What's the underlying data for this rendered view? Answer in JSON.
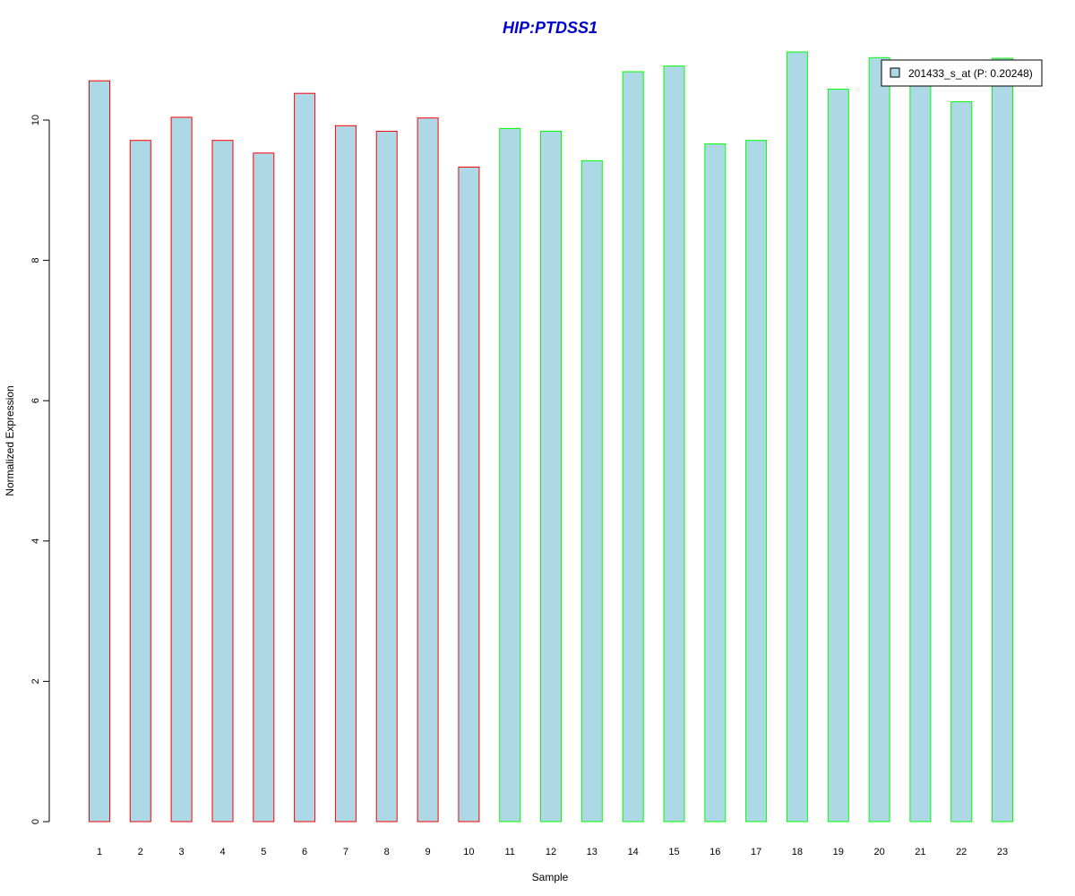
{
  "chart_data": {
    "type": "bar",
    "title": "HIP:PTDSS1",
    "xlabel": "Sample",
    "ylabel": "Normalized Expression",
    "categories": [
      "1",
      "2",
      "3",
      "4",
      "5",
      "6",
      "7",
      "8",
      "9",
      "10",
      "11",
      "12",
      "13",
      "14",
      "15",
      "16",
      "17",
      "18",
      "19",
      "20",
      "21",
      "22",
      "23"
    ],
    "series": [
      {
        "name": "201433_s_at (P: 0.20248)",
        "values": [
          10.56,
          9.71,
          10.04,
          9.71,
          9.53,
          10.38,
          9.92,
          9.84,
          10.03,
          9.33,
          9.88,
          9.84,
          9.42,
          10.69,
          10.77,
          9.66,
          9.71,
          10.97,
          10.44,
          10.89,
          10.62,
          10.26,
          10.88
        ],
        "group_outline": [
          "red",
          "red",
          "red",
          "red",
          "red",
          "red",
          "red",
          "red",
          "red",
          "red",
          "green",
          "green",
          "green",
          "green",
          "green",
          "green",
          "green",
          "green",
          "green",
          "green",
          "green",
          "green",
          "green"
        ]
      }
    ],
    "ylim": [
      0,
      11
    ],
    "yticks": [
      0,
      2,
      4,
      6,
      8,
      10
    ],
    "legend_position": "top-right",
    "grid": false,
    "colors": {
      "fill": "#add8e6",
      "outline_red": "#ff0000",
      "outline_green": "#00ff00",
      "title": "#0000cc"
    }
  }
}
